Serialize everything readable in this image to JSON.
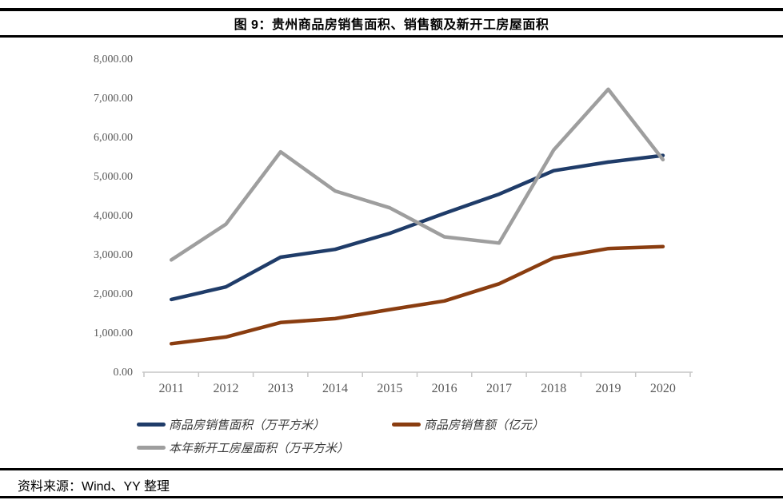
{
  "header": {
    "title": "图 9：贵州商品房销售面积、销售额及新开工房屋面积"
  },
  "footer": {
    "source": "资料来源：Wind、YY 整理"
  },
  "chart_data": {
    "type": "line",
    "title": "图 9：贵州商品房销售面积、销售额及新开工房屋面积",
    "x": [
      "2011",
      "2012",
      "2013",
      "2014",
      "2015",
      "2016",
      "2017",
      "2018",
      "2019",
      "2020"
    ],
    "series": [
      {
        "name": "商品房销售面积（万平方米）",
        "color": "#1F3C69",
        "values": [
          1880,
          2200,
          2960,
          3160,
          3570,
          4080,
          4570,
          5170,
          5390,
          5560
        ]
      },
      {
        "name": "商品房销售额（亿元）",
        "color": "#8A3D10",
        "values": [
          750,
          920,
          1290,
          1390,
          1620,
          1840,
          2280,
          2940,
          3180,
          3230
        ]
      },
      {
        "name": "本年新开工房屋面积（万平方米）",
        "color": "#9E9E9E",
        "values": [
          2890,
          3800,
          5650,
          4650,
          4220,
          3480,
          3320,
          5700,
          7250,
          5450
        ]
      }
    ],
    "ylim": [
      0,
      8000
    ],
    "y_tick_step": 1000,
    "y_tick_labels": [
      "0.00",
      "1,000.00",
      "2,000.00",
      "3,000.00",
      "4,000.00",
      "5,000.00",
      "6,000.00",
      "7,000.00",
      "8,000.00"
    ],
    "xlabel": "",
    "ylabel": "",
    "grid": false,
    "legend_position": "bottom",
    "axis_color": "#C6C6C6",
    "tick_label_color": "#595959"
  }
}
